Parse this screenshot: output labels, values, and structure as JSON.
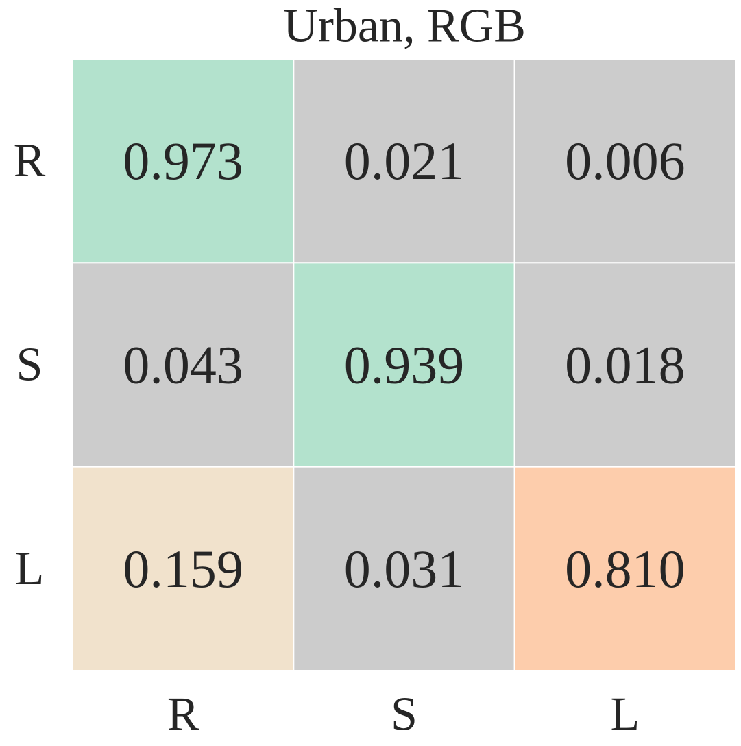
{
  "chart_data": {
    "type": "heatmap",
    "title": "Urban, RGB",
    "x_categories": [
      "R",
      "S",
      "L"
    ],
    "y_categories": [
      "R",
      "S",
      "L"
    ],
    "values": [
      [
        0.973,
        0.021,
        0.006
      ],
      [
        0.043,
        0.939,
        0.018
      ],
      [
        0.159,
        0.031,
        0.81
      ]
    ],
    "value_labels": [
      [
        "0.973",
        "0.021",
        "0.006"
      ],
      [
        "0.043",
        "0.939",
        "0.018"
      ],
      [
        "0.159",
        "0.031",
        "0.810"
      ]
    ],
    "cell_colors": [
      [
        "#b3e2cd",
        "#cccccc",
        "#cccccc"
      ],
      [
        "#cccccc",
        "#b3e2cd",
        "#cccccc"
      ],
      [
        "#f1e2cc",
        "#cccccc",
        "#fdcdac"
      ]
    ]
  }
}
